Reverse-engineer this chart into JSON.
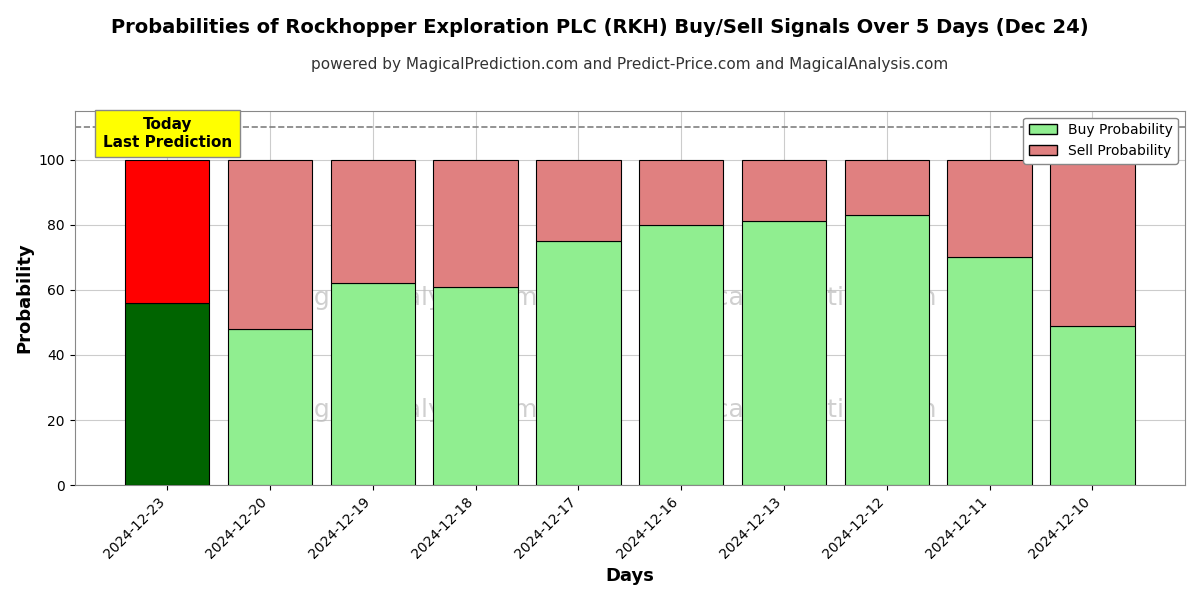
{
  "title": "Probabilities of Rockhopper Exploration PLC (RKH) Buy/Sell Signals Over 5 Days (Dec 24)",
  "subtitle": "powered by MagicalPrediction.com and Predict-Price.com and MagicalAnalysis.com",
  "xlabel": "Days",
  "ylabel": "Probability",
  "categories": [
    "2024-12-23",
    "2024-12-20",
    "2024-12-19",
    "2024-12-18",
    "2024-12-17",
    "2024-12-16",
    "2024-12-13",
    "2024-12-12",
    "2024-12-11",
    "2024-12-10"
  ],
  "buy_values": [
    56,
    48,
    62,
    61,
    75,
    80,
    81,
    83,
    70,
    49
  ],
  "sell_values": [
    44,
    52,
    38,
    39,
    25,
    20,
    19,
    17,
    30,
    51
  ],
  "today_bar_buy_color": "#006400",
  "today_bar_sell_color": "#FF0000",
  "other_bar_buy_color": "#90EE90",
  "other_bar_sell_color": "#E08080",
  "bar_edgecolor": "#000000",
  "today_annotation": "Today\nLast Prediction",
  "annotation_bg_color": "#FFFF00",
  "dashed_line_y": 110,
  "ylim": [
    0,
    115
  ],
  "legend_buy_label": "Buy Probability",
  "legend_sell_label": "Sell Probability",
  "watermark_color": "#cccccc",
  "grid_color": "#cccccc",
  "background_color": "#ffffff",
  "title_fontsize": 14,
  "subtitle_fontsize": 11,
  "axis_label_fontsize": 13,
  "tick_fontsize": 10,
  "bar_width": 0.82
}
